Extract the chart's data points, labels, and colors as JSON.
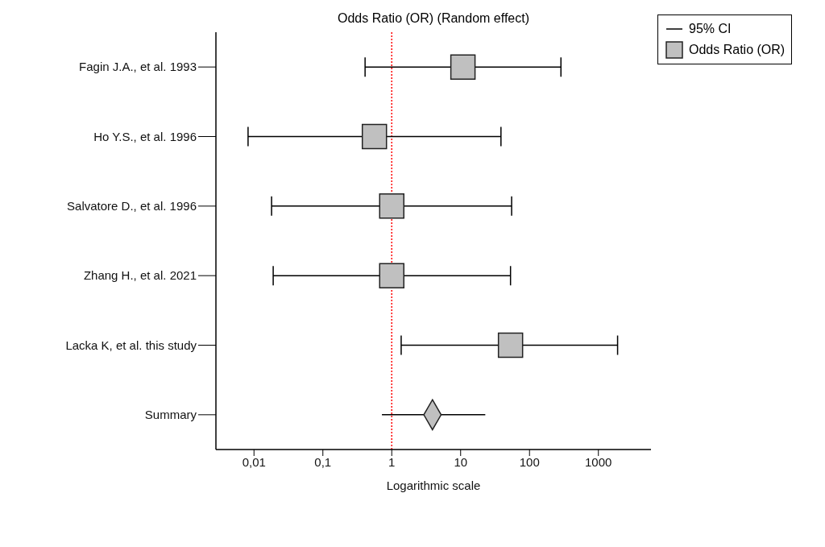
{
  "chart_data": {
    "type": "scatter",
    "title": "Odds Ratio (OR) (Random effect)",
    "xlabel": "Logarithmic scale",
    "orientation": "horizontal",
    "categories": [
      "Fagin J.A.,  et al. 1993",
      "Ho Y.S., et al. 1996",
      "Salvatore D., et al. 1996",
      "Zhang H., et al. 2021",
      "Lacka K, et al. this study",
      "Summary"
    ],
    "series": [
      {
        "name": "Odds Ratio (OR)",
        "color": "#c0c0c0",
        "marker": "square",
        "values": [
          10.8,
          0.56,
          1.0,
          1.0,
          53,
          null
        ],
        "errors": [
          [
            0.41,
            286
          ],
          [
            0.0082,
            38.5
          ],
          [
            0.018,
            55
          ],
          [
            0.019,
            53
          ],
          [
            1.37,
            1900
          ],
          null
        ]
      },
      {
        "color": "#c0c0c0",
        "marker": "diamond",
        "values": [
          null,
          null,
          null,
          null,
          null,
          3.9
        ],
        "errors": [
          null,
          null,
          null,
          null,
          null,
          [
            0.72,
            22.8
          ]
        ]
      }
    ],
    "log": "x",
    "xlim": [
      0.0028,
      5800
    ],
    "xticks": [
      {
        "value": 0.01,
        "label": "0,01"
      },
      {
        "value": 0.1,
        "label": "0,1"
      },
      1,
      10,
      100,
      1000
    ],
    "ref_lines": [
      {
        "axis": "x",
        "value": 1,
        "color": "#ff0000",
        "line_style": "dotted"
      }
    ],
    "annotations": [
      "95% CI"
    ],
    "legend": "top right",
    "grid": false
  }
}
